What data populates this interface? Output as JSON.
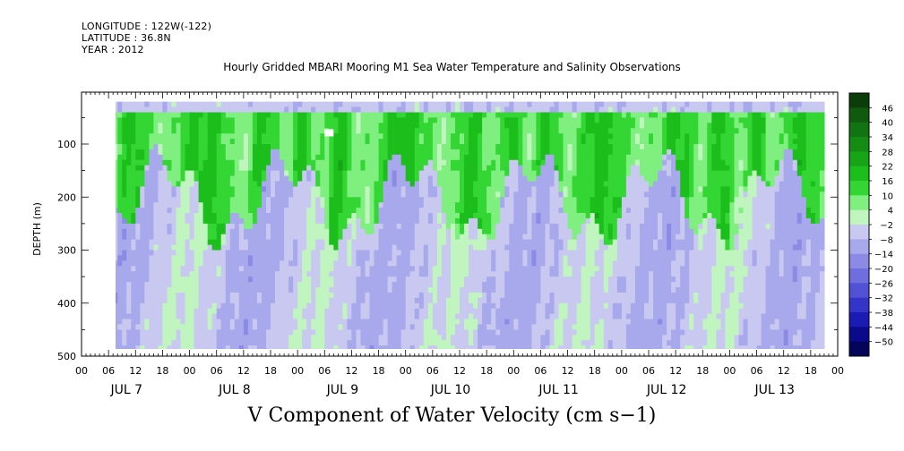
{
  "header": {
    "longitude": "LONGITUDE : 122W(-122)",
    "latitude": "LATITUDE : 36.8N",
    "year": "YEAR : 2012"
  },
  "chart_data": {
    "type": "heatmap",
    "title": "Hourly Gridded MBARI Mooring M1 Sea Water Temperature and Salinity Observations",
    "caption": "V Component of Water Velocity (cm s−1)",
    "xlabel": "",
    "ylabel": "DEPTH (m)",
    "ylim": [
      500,
      0
    ],
    "y_ticks": [
      100,
      200,
      300,
      400,
      500
    ],
    "x_hour_ticks": [
      "00",
      "06",
      "12",
      "18",
      "00",
      "06",
      "12",
      "18",
      "00",
      "06",
      "12",
      "18",
      "00",
      "06",
      "12",
      "18",
      "00",
      "06",
      "12",
      "18",
      "00",
      "06",
      "12",
      "18",
      "00",
      "06",
      "12",
      "18",
      "00"
    ],
    "x_day_labels": [
      "JUL  7",
      "JUL  8",
      "JUL  9",
      "JUL 10",
      "JUL 11",
      "JUL 12",
      "JUL 13"
    ],
    "data_time_range_hours": [
      6,
      165
    ],
    "data_depth_range_m": [
      20,
      490
    ],
    "colorbar_levels": [
      46,
      40,
      34,
      28,
      22,
      16,
      10,
      4,
      -2,
      -8,
      -14,
      -20,
      -26,
      -32,
      -38,
      -44,
      -50
    ],
    "colorbar_colors": [
      "#0b3d0b",
      "#0f5a0f",
      "#127312",
      "#148c14",
      "#16a516",
      "#1cbe1c",
      "#33d633",
      "#7fef7f",
      "#c0f5c0",
      "#c8c8f0",
      "#a8a8ec",
      "#8b8be6",
      "#6e6edf",
      "#5151d6",
      "#3434c9",
      "#1a1ab4",
      "#0a0a8c",
      "#04045a"
    ],
    "field_summary": {
      "upper_layer": "positive (northward), roughly 0-25 cm/s",
      "deep_layer": "negative (southward), roughly 0 to -15 cm/s",
      "surface_band": "negative, -5 to -15 cm/s"
    }
  }
}
